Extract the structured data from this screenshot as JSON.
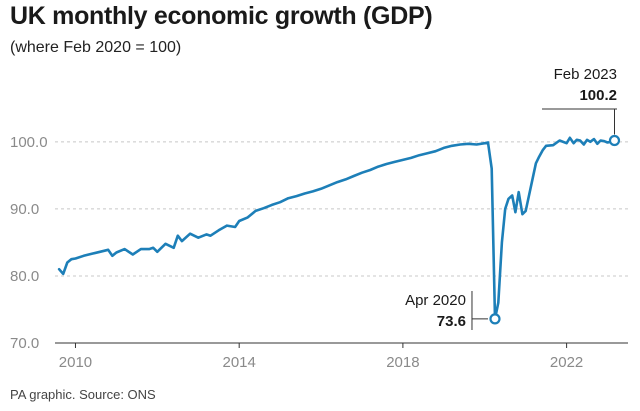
{
  "title": "UK monthly economic growth (GDP)",
  "subtitle": "(where Feb 2020 = 100)",
  "source": "PA graphic. Source: ONS",
  "colors": {
    "line": "#1d7fb8",
    "grid": "#c8c8c8",
    "axis": "#333333"
  },
  "chart_data": {
    "type": "line",
    "title": "UK monthly economic growth (GDP)",
    "subtitle": "(where Feb 2020 = 100)",
    "xlabel": "",
    "ylabel": "",
    "ylim": [
      70,
      104
    ],
    "xlim": [
      2009.5,
      2023.5
    ],
    "grid": true,
    "y_ticks": [
      70.0,
      80.0,
      90.0,
      100.0
    ],
    "y_tick_labels": [
      "70.0",
      "80.0",
      "90.0",
      "100.0"
    ],
    "x_ticks": [
      2010,
      2014,
      2018,
      2022
    ],
    "x_tick_labels": [
      "2010",
      "2014",
      "2018",
      "2022"
    ],
    "series": [
      {
        "x": [
          2009.6,
          2009.7,
          2009.8,
          2009.9,
          2010.0,
          2010.2,
          2010.4,
          2010.6,
          2010.8,
          2010.9,
          2011.0,
          2011.2,
          2011.4,
          2011.6,
          2011.8,
          2011.9,
          2012.0,
          2012.2,
          2012.4,
          2012.5,
          2012.6,
          2012.8,
          2013.0,
          2013.2,
          2013.3,
          2013.5,
          2013.7,
          2013.9,
          2014.0,
          2014.2,
          2014.4,
          2014.6,
          2014.8,
          2015.0,
          2015.2,
          2015.4,
          2015.6,
          2015.8,
          2016.0,
          2016.2,
          2016.4,
          2016.6,
          2016.8,
          2017.0,
          2017.2,
          2017.4,
          2017.6,
          2017.8,
          2018.0,
          2018.2,
          2018.4,
          2018.6,
          2018.8,
          2019.0,
          2019.2,
          2019.4,
          2019.6,
          2019.8,
          2020.0,
          2020.08,
          2020.17,
          2020.25,
          2020.33,
          2020.42,
          2020.5,
          2020.58,
          2020.67,
          2020.75,
          2020.83,
          2020.92,
          2021.0,
          2021.08,
          2021.17,
          2021.25,
          2021.33,
          2021.42,
          2021.5,
          2021.67,
          2021.83,
          2022.0,
          2022.08,
          2022.17,
          2022.25,
          2022.33,
          2022.42,
          2022.5,
          2022.58,
          2022.67,
          2022.75,
          2022.83,
          2022.92,
          2023.0,
          2023.08,
          2023.17
        ],
        "values": [
          81.0,
          80.3,
          82.0,
          82.5,
          82.6,
          83.0,
          83.3,
          83.6,
          83.9,
          83.0,
          83.5,
          84.0,
          83.2,
          84.0,
          84.0,
          84.2,
          83.6,
          84.8,
          84.2,
          86.0,
          85.2,
          86.3,
          85.7,
          86.2,
          86.0,
          86.8,
          87.5,
          87.3,
          88.2,
          88.7,
          89.7,
          90.1,
          90.6,
          91.0,
          91.6,
          91.9,
          92.3,
          92.6,
          93.0,
          93.5,
          94.0,
          94.4,
          94.9,
          95.4,
          95.8,
          96.3,
          96.7,
          97.0,
          97.3,
          97.6,
          98.0,
          98.3,
          98.6,
          99.1,
          99.4,
          99.6,
          99.7,
          99.6,
          99.8,
          99.9,
          96.0,
          73.6,
          76.0,
          85.0,
          90.0,
          91.5,
          92.0,
          89.5,
          92.5,
          89.2,
          89.7,
          92.0,
          94.5,
          96.8,
          97.8,
          98.8,
          99.4,
          99.5,
          100.2,
          99.8,
          100.6,
          99.8,
          100.3,
          100.2,
          99.6,
          100.3,
          100.0,
          100.4,
          99.7,
          100.2,
          100.1,
          99.9,
          100.0,
          100.2
        ]
      }
    ],
    "annotations": [
      {
        "x": 2020.25,
        "y": 73.6,
        "label": "Apr 2020",
        "value": "73.6"
      },
      {
        "x": 2023.17,
        "y": 100.2,
        "label": "Feb 2023",
        "value": "100.2"
      }
    ]
  }
}
